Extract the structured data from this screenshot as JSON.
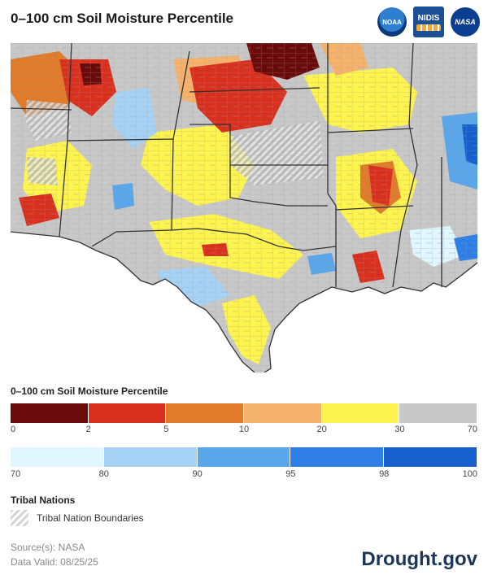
{
  "title": "0–100 cm Soil Moisture Percentile",
  "logos": {
    "noaa": "NOAA",
    "nidis": "NIDIS",
    "nasa": "NASA"
  },
  "legend": {
    "title": "0–100 cm Soil Moisture Percentile",
    "dry_bins": [
      {
        "from": 0,
        "to": 2,
        "color": "#6b0a0a"
      },
      {
        "from": 2,
        "to": 5,
        "color": "#d7301f"
      },
      {
        "from": 5,
        "to": 10,
        "color": "#e07b2a"
      },
      {
        "from": 10,
        "to": 20,
        "color": "#f4b26c"
      },
      {
        "from": 20,
        "to": 30,
        "color": "#fdf450"
      },
      {
        "from": 30,
        "to": 70,
        "color": "#c8c8c8"
      }
    ],
    "dry_ticks": [
      "0",
      "2",
      "5",
      "10",
      "20",
      "30",
      "70"
    ],
    "wet_bins": [
      {
        "from": 70,
        "to": 80,
        "color": "#e0f7ff"
      },
      {
        "from": 80,
        "to": 90,
        "color": "#a6d3f5"
      },
      {
        "from": 90,
        "to": 95,
        "color": "#5aa6ea"
      },
      {
        "from": 95,
        "to": 98,
        "color": "#2f7ee6"
      },
      {
        "from": 98,
        "to": 100,
        "color": "#165fcc"
      }
    ],
    "wet_ticks": [
      "70",
      "80",
      "90",
      "95",
      "98",
      "100"
    ]
  },
  "tribal": {
    "title": "Tribal Nations",
    "label": "Tribal Nation Boundaries"
  },
  "source": "Source(s): NASA",
  "valid": "Data Valid: 08/25/25",
  "brand": "Drought.gov"
}
